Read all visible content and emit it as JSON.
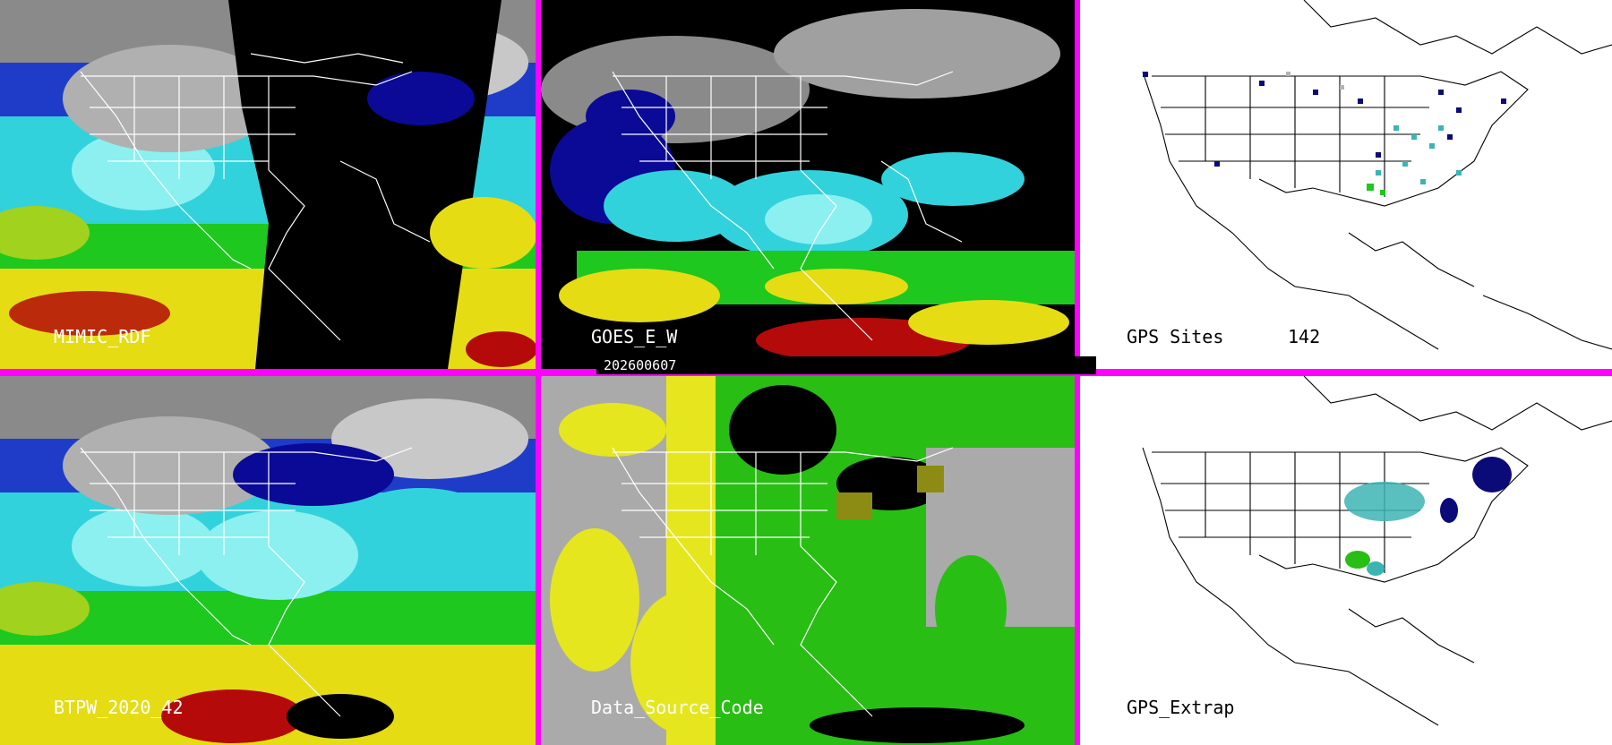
{
  "panels": {
    "mimic": {
      "label": "MIMIC_RDF"
    },
    "goes": {
      "label": "GOES_E_W"
    },
    "gps_sites": {
      "label": "GPS Sites",
      "count": "142"
    },
    "btpw": {
      "label": "BTPW_2020_42"
    },
    "source": {
      "label": "Data_Source_Code"
    },
    "gps_extrap": {
      "label": "GPS_Extrap"
    }
  },
  "date": "202600607",
  "colors": {
    "divider": "#ff00ff",
    "gray_cloud": "#b0b0b0",
    "dark_blue": "#0a0a96",
    "blue": "#1e3cc8",
    "cyan": "#32d2dc",
    "light_cyan": "#8cf0f0",
    "green": "#1ec81e",
    "yellow_green": "#a0d21e",
    "yellow": "#e6dc14",
    "red": "#b40a0a",
    "source_gray": "#aaaaaa",
    "source_yellow": "#e6e61e",
    "source_green": "#28be14",
    "source_olive": "#8c8c14",
    "teal": "#3cb4b4",
    "navy": "#0a0a78"
  }
}
